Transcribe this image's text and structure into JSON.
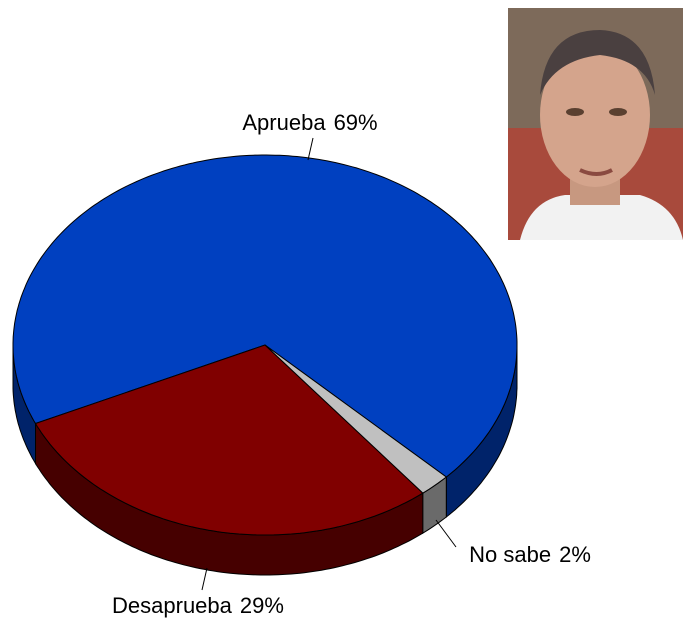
{
  "chart_data": {
    "type": "pie",
    "categories": [
      "Aprueba",
      "Desaprueba",
      "No sabe"
    ],
    "values": [
      69,
      29,
      2
    ],
    "value_labels": [
      "69%",
      "29%",
      "2%"
    ],
    "colors": [
      "#0040c0",
      "#800000",
      "#c0c0c0"
    ]
  }
}
